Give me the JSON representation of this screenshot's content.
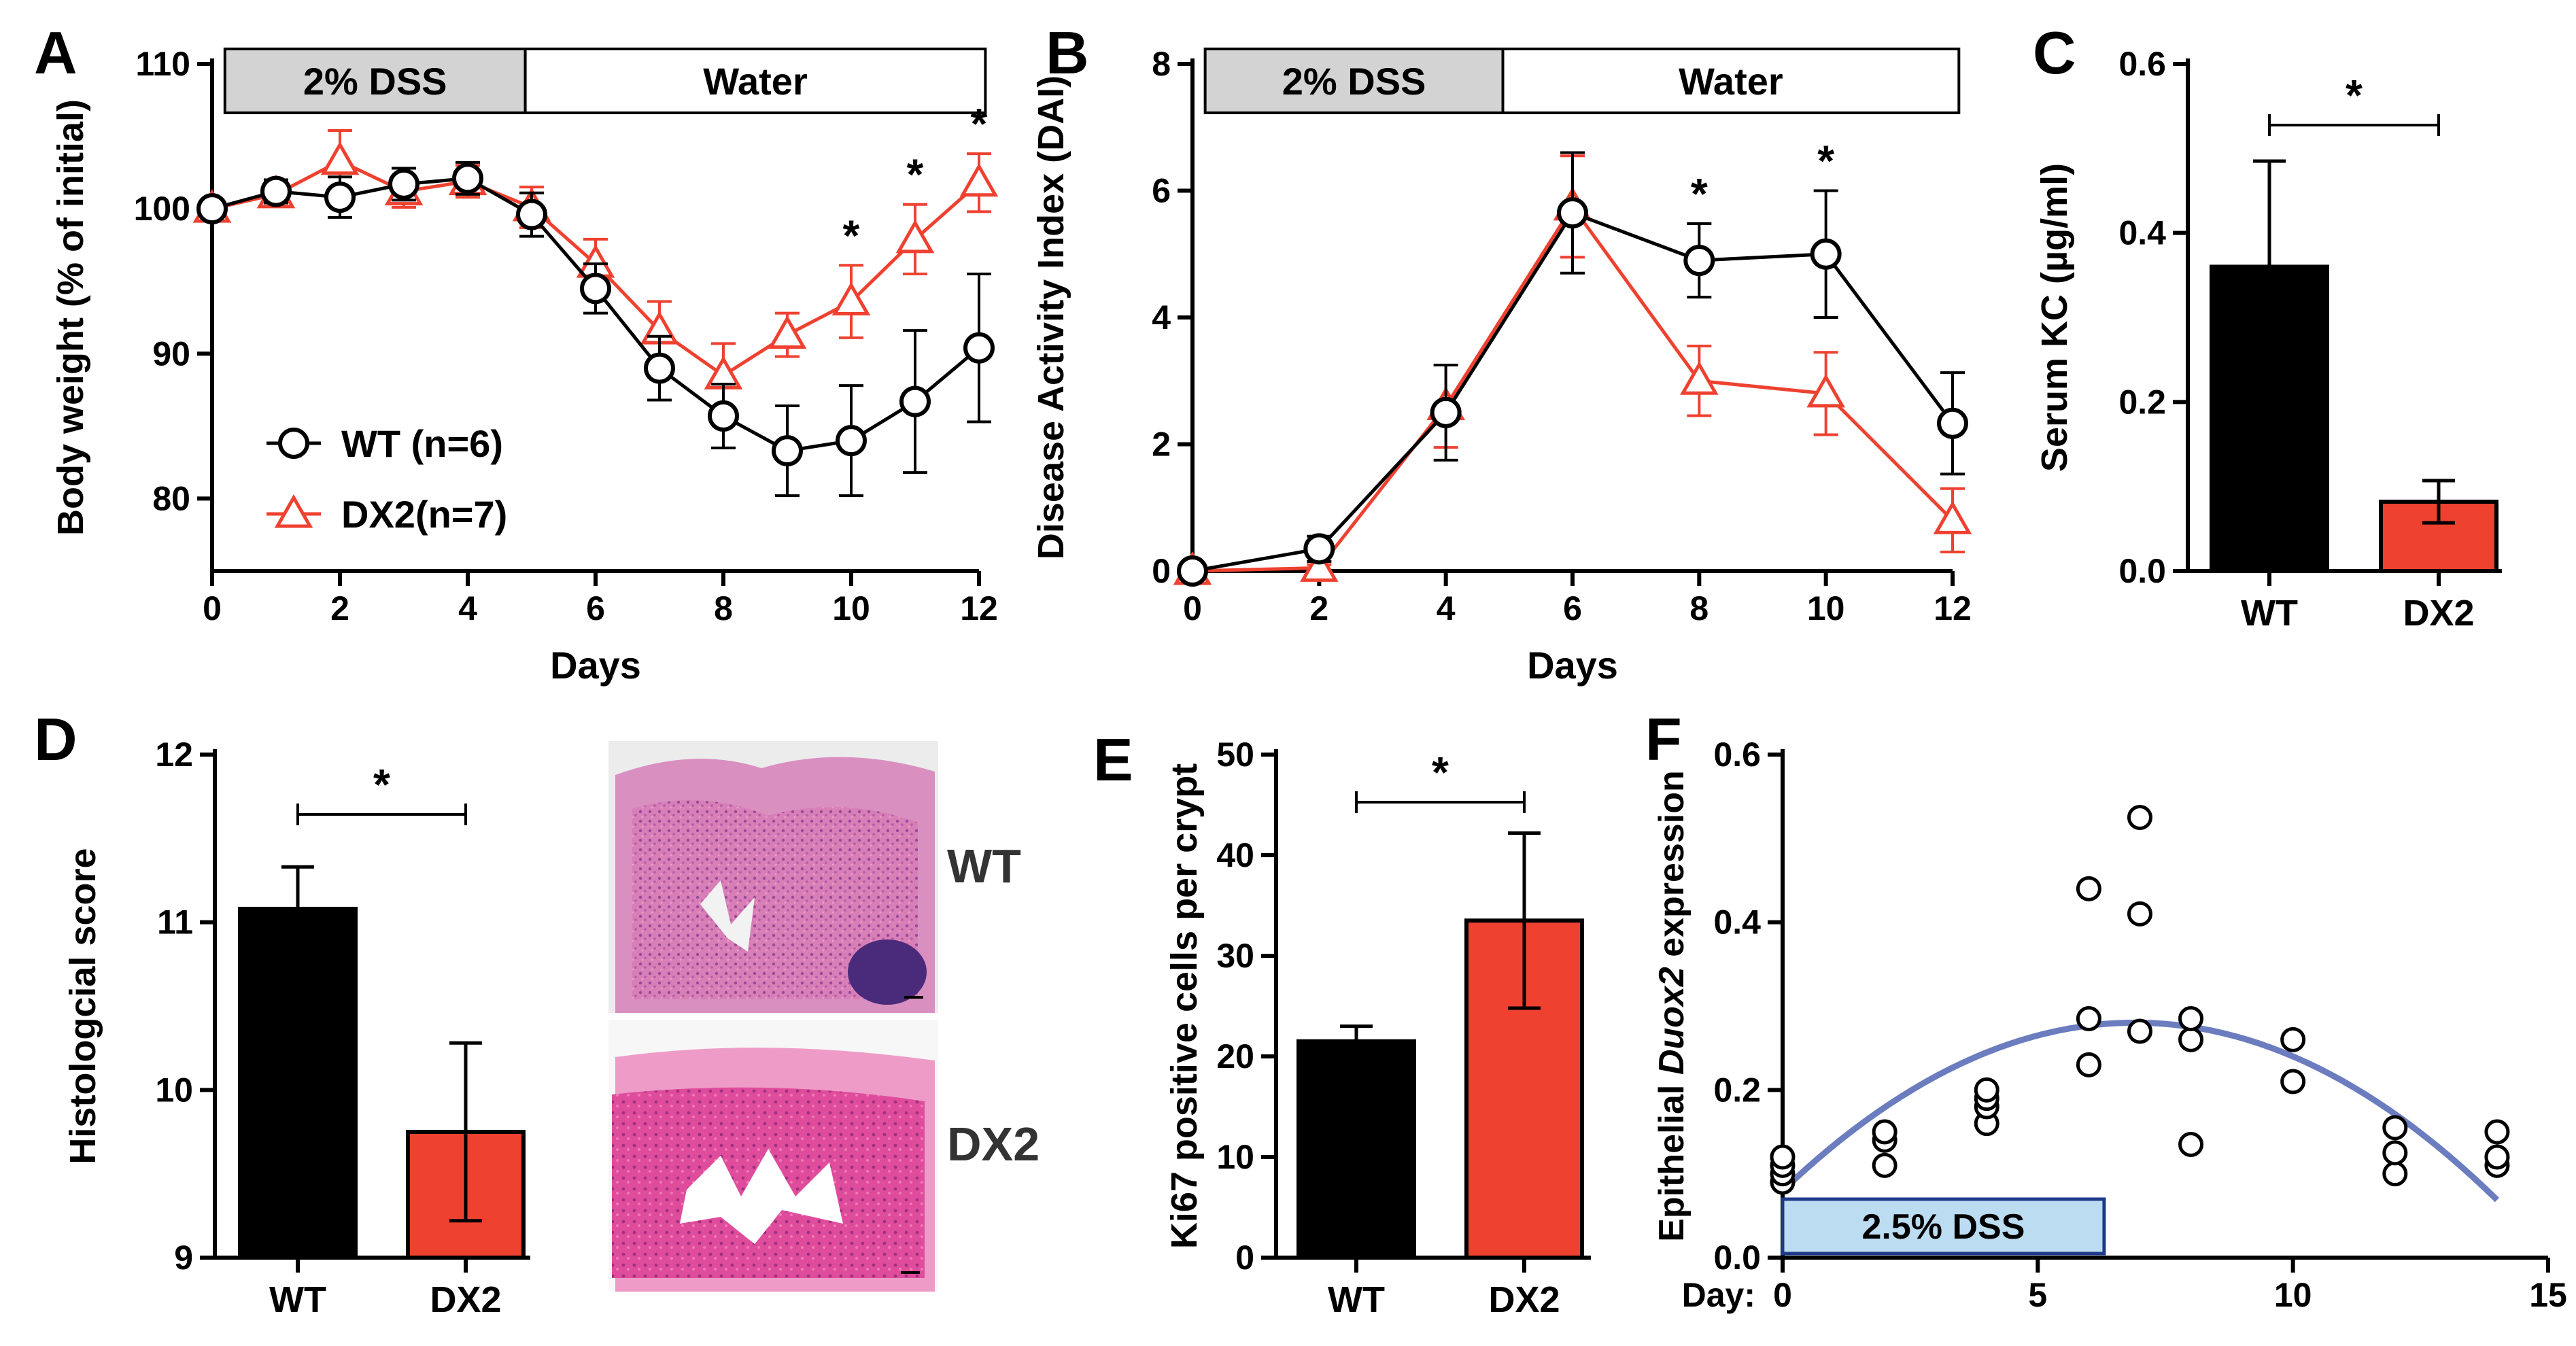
{
  "figure": {
    "colors": {
      "wt": "#000000",
      "dx2": "#ef4130",
      "dss_box": "#d3d3d3",
      "dss_box_f": "#bcdcf2",
      "fit_line": "#6b7dbf"
    },
    "histology": {
      "wt_label": "WT",
      "dx2_label": "DX2"
    }
  },
  "chart_data": [
    {
      "panel": "A",
      "type": "line",
      "xlabel": "Days",
      "ylabel": "Body weight (% of initial)",
      "xlim": [
        0,
        12
      ],
      "ylim": [
        75,
        110
      ],
      "xticks": [
        0,
        2,
        4,
        6,
        8,
        10,
        12
      ],
      "yticks": [
        80,
        90,
        100,
        110
      ],
      "phases": [
        {
          "label": "2% DSS",
          "from": 0.2,
          "to": 4.9
        },
        {
          "label": "Water",
          "from": 4.9,
          "to": 12.1
        }
      ],
      "series": [
        {
          "name": "WT (n=6)",
          "color": "#000000",
          "marker": "circle",
          "x": [
            0,
            1,
            2,
            3,
            4,
            5,
            6,
            7,
            8,
            9,
            10,
            11,
            12
          ],
          "y": [
            100,
            101.2,
            100.8,
            101.7,
            102.1,
            99.6,
            94.5,
            89,
            85.7,
            83.3,
            84,
            86.7,
            90.4
          ],
          "err": [
            0.5,
            0.8,
            1.4,
            1.1,
            1.1,
            1.5,
            1.7,
            2.2,
            2.2,
            3.1,
            3.8,
            4.9,
            5.1
          ]
        },
        {
          "name": "DX2(n=7)",
          "color": "#ef4130",
          "marker": "triangle",
          "x": [
            0,
            1,
            2,
            3,
            4,
            5,
            6,
            7,
            8,
            9,
            10,
            11,
            12
          ],
          "y": [
            100,
            101,
            103.3,
            101.2,
            101.9,
            100.1,
            96.2,
            91.6,
            88.5,
            91.3,
            93.6,
            97.9,
            101.8
          ],
          "err": [
            0.5,
            0.8,
            2.1,
            1.1,
            1.1,
            1.4,
            1.7,
            2,
            2.2,
            1.5,
            2.5,
            2.4,
            2
          ]
        }
      ],
      "significance": [
        {
          "x": 10,
          "label": "*"
        },
        {
          "x": 11,
          "label": "*"
        },
        {
          "x": 12,
          "label": "*"
        }
      ]
    },
    {
      "panel": "B",
      "type": "line",
      "xlabel": "Days",
      "ylabel": "Disease Activity Index (DAI)",
      "xlim": [
        0,
        12
      ],
      "ylim": [
        0,
        8
      ],
      "xticks": [
        0,
        2,
        4,
        6,
        8,
        10,
        12
      ],
      "yticks": [
        0,
        2,
        4,
        6,
        8
      ],
      "phases": [
        {
          "label": "2% DSS",
          "from": 0.2,
          "to": 4.9
        },
        {
          "label": "Water",
          "from": 4.9,
          "to": 12.1
        }
      ],
      "series": [
        {
          "name": "WT",
          "color": "#000000",
          "marker": "circle",
          "x": [
            0,
            2,
            4,
            6,
            8,
            10,
            12
          ],
          "y": [
            0,
            0.35,
            2.5,
            5.65,
            4.9,
            5,
            2.33
          ],
          "err": [
            0,
            0.2,
            0.75,
            0.95,
            0.58,
            1,
            0.8
          ]
        },
        {
          "name": "DX2",
          "color": "#ef4130",
          "marker": "triangle",
          "x": [
            0,
            2,
            4,
            6,
            8,
            10,
            12
          ],
          "y": [
            0,
            0.05,
            2.6,
            5.75,
            3,
            2.8,
            0.8
          ],
          "err": [
            0,
            0.05,
            0.65,
            0.8,
            0.55,
            0.65,
            0.5
          ]
        }
      ],
      "significance": [
        {
          "x": 8,
          "label": "*"
        },
        {
          "x": 10,
          "label": "*"
        }
      ]
    },
    {
      "panel": "C",
      "type": "bar",
      "ylabel": "Serum KC (µg/ml)",
      "categories": [
        "WT",
        "DX2"
      ],
      "values": [
        0.36,
        0.082
      ],
      "errors": [
        0.125,
        0.025
      ],
      "ylim": [
        0,
        0.6
      ],
      "yticks": [
        0.0,
        0.2,
        0.4,
        0.6
      ],
      "significance": "*"
    },
    {
      "panel": "D",
      "type": "bar",
      "ylabel": "Histologcial score",
      "categories": [
        "WT",
        "DX2"
      ],
      "values": [
        11.08,
        9.75
      ],
      "errors": [
        0.25,
        0.53
      ],
      "ylim": [
        9,
        12
      ],
      "yticks": [
        9,
        10,
        11,
        12
      ],
      "significance": "*"
    },
    {
      "panel": "E",
      "type": "bar",
      "ylabel": "Ki67 positive cells per crypt",
      "categories": [
        "WT",
        "DX2"
      ],
      "values": [
        21.5,
        33.5
      ],
      "errors": [
        1.5,
        8.7
      ],
      "ylim": [
        0,
        50
      ],
      "yticks": [
        0,
        10,
        20,
        30,
        40,
        50
      ],
      "significance": "*"
    },
    {
      "panel": "F",
      "type": "scatter",
      "ylabel_prefix": "Epithelial ",
      "ylabel_gene": "Duox2",
      "ylabel_suffix": " expression",
      "xlabel_prefix": "Day:",
      "xlim": [
        0,
        15
      ],
      "ylim": [
        0,
        0.6
      ],
      "xticks": [
        0,
        5,
        10,
        15
      ],
      "yticks": [
        0.0,
        0.2,
        0.4,
        0.6
      ],
      "dss_label": "2.5% DSS",
      "dss_range": [
        0,
        6.3
      ],
      "points": [
        [
          0,
          0.09
        ],
        [
          0,
          0.1
        ],
        [
          0,
          0.11
        ],
        [
          0,
          0.12
        ],
        [
          2,
          0.11
        ],
        [
          2,
          0.14
        ],
        [
          2,
          0.15
        ],
        [
          4,
          0.16
        ],
        [
          4,
          0.18
        ],
        [
          4,
          0.19
        ],
        [
          4,
          0.2
        ],
        [
          6,
          0.23
        ],
        [
          6,
          0.285
        ],
        [
          6,
          0.44
        ],
        [
          7,
          0.27
        ],
        [
          7,
          0.41
        ],
        [
          7,
          0.525
        ],
        [
          8,
          0.135
        ],
        [
          8,
          0.26
        ],
        [
          8,
          0.285
        ],
        [
          10,
          0.21
        ],
        [
          10,
          0.26
        ],
        [
          12,
          0.1
        ],
        [
          12,
          0.125
        ],
        [
          12,
          0.155
        ],
        [
          14,
          0.11
        ],
        [
          14,
          0.12
        ],
        [
          14,
          0.15
        ]
      ],
      "fit": {
        "type": "quadratic",
        "coef": [
          0.08,
          0.058,
          -0.0042
        ],
        "x_from": 0,
        "x_to": 14,
        "color": "#6b7dbf"
      }
    }
  ]
}
